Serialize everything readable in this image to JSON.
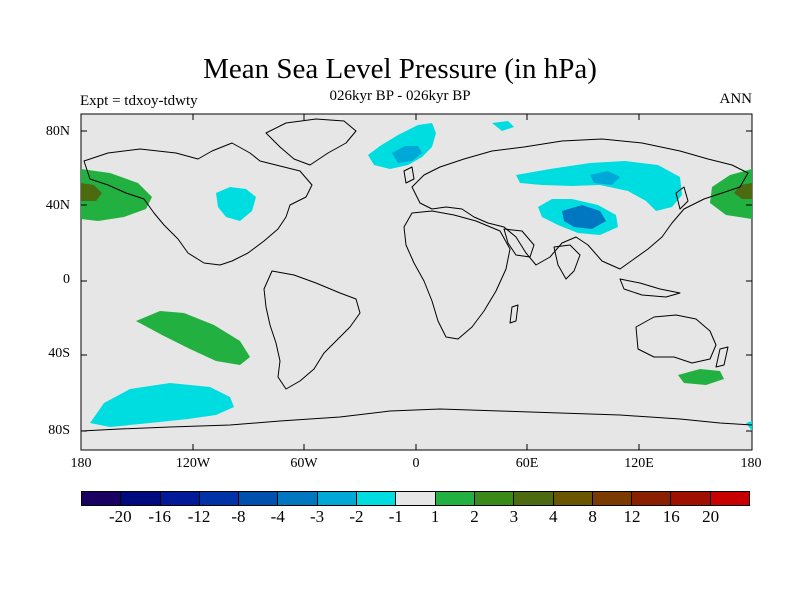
{
  "figure": {
    "title": "Mean Sea Level Pressure (in hPa)",
    "subtitle": "026kyr BP - 026kyr BP",
    "left_label": "Expt = tdxoy-tdwty",
    "right_label": "ANN"
  },
  "axes": {
    "y_ticks": [
      "80N",
      "40N",
      "0",
      "40S",
      "80S"
    ],
    "x_ticks": [
      "180",
      "120W",
      "60W",
      "0",
      "60E",
      "120E",
      "180"
    ]
  },
  "colorbar": {
    "colors": [
      "#1a0060",
      "#000a80",
      "#001a9a",
      "#0033a8",
      "#0050b0",
      "#0077c0",
      "#00a8d8",
      "#00dde0",
      "#e6e6e6",
      "#22b040",
      "#3a8a1a",
      "#4c6a10",
      "#6a5500",
      "#7a3a00",
      "#8a2000",
      "#a01000",
      "#c80000"
    ],
    "labels": [
      "-20",
      "-16",
      "-12",
      "-8",
      "-4",
      "-3",
      "-2",
      "-1",
      "1",
      "2",
      "3",
      "4",
      "8",
      "12",
      "16",
      "20"
    ]
  },
  "legend_colors": {
    "background": "#e6e6e6",
    "neg1": "#00dde0",
    "neg2": "#00a8d8",
    "neg3": "#0077c0",
    "pos1": "#22b040",
    "pos2": "#3a8a1a",
    "pos3": "#4c6a10"
  }
}
